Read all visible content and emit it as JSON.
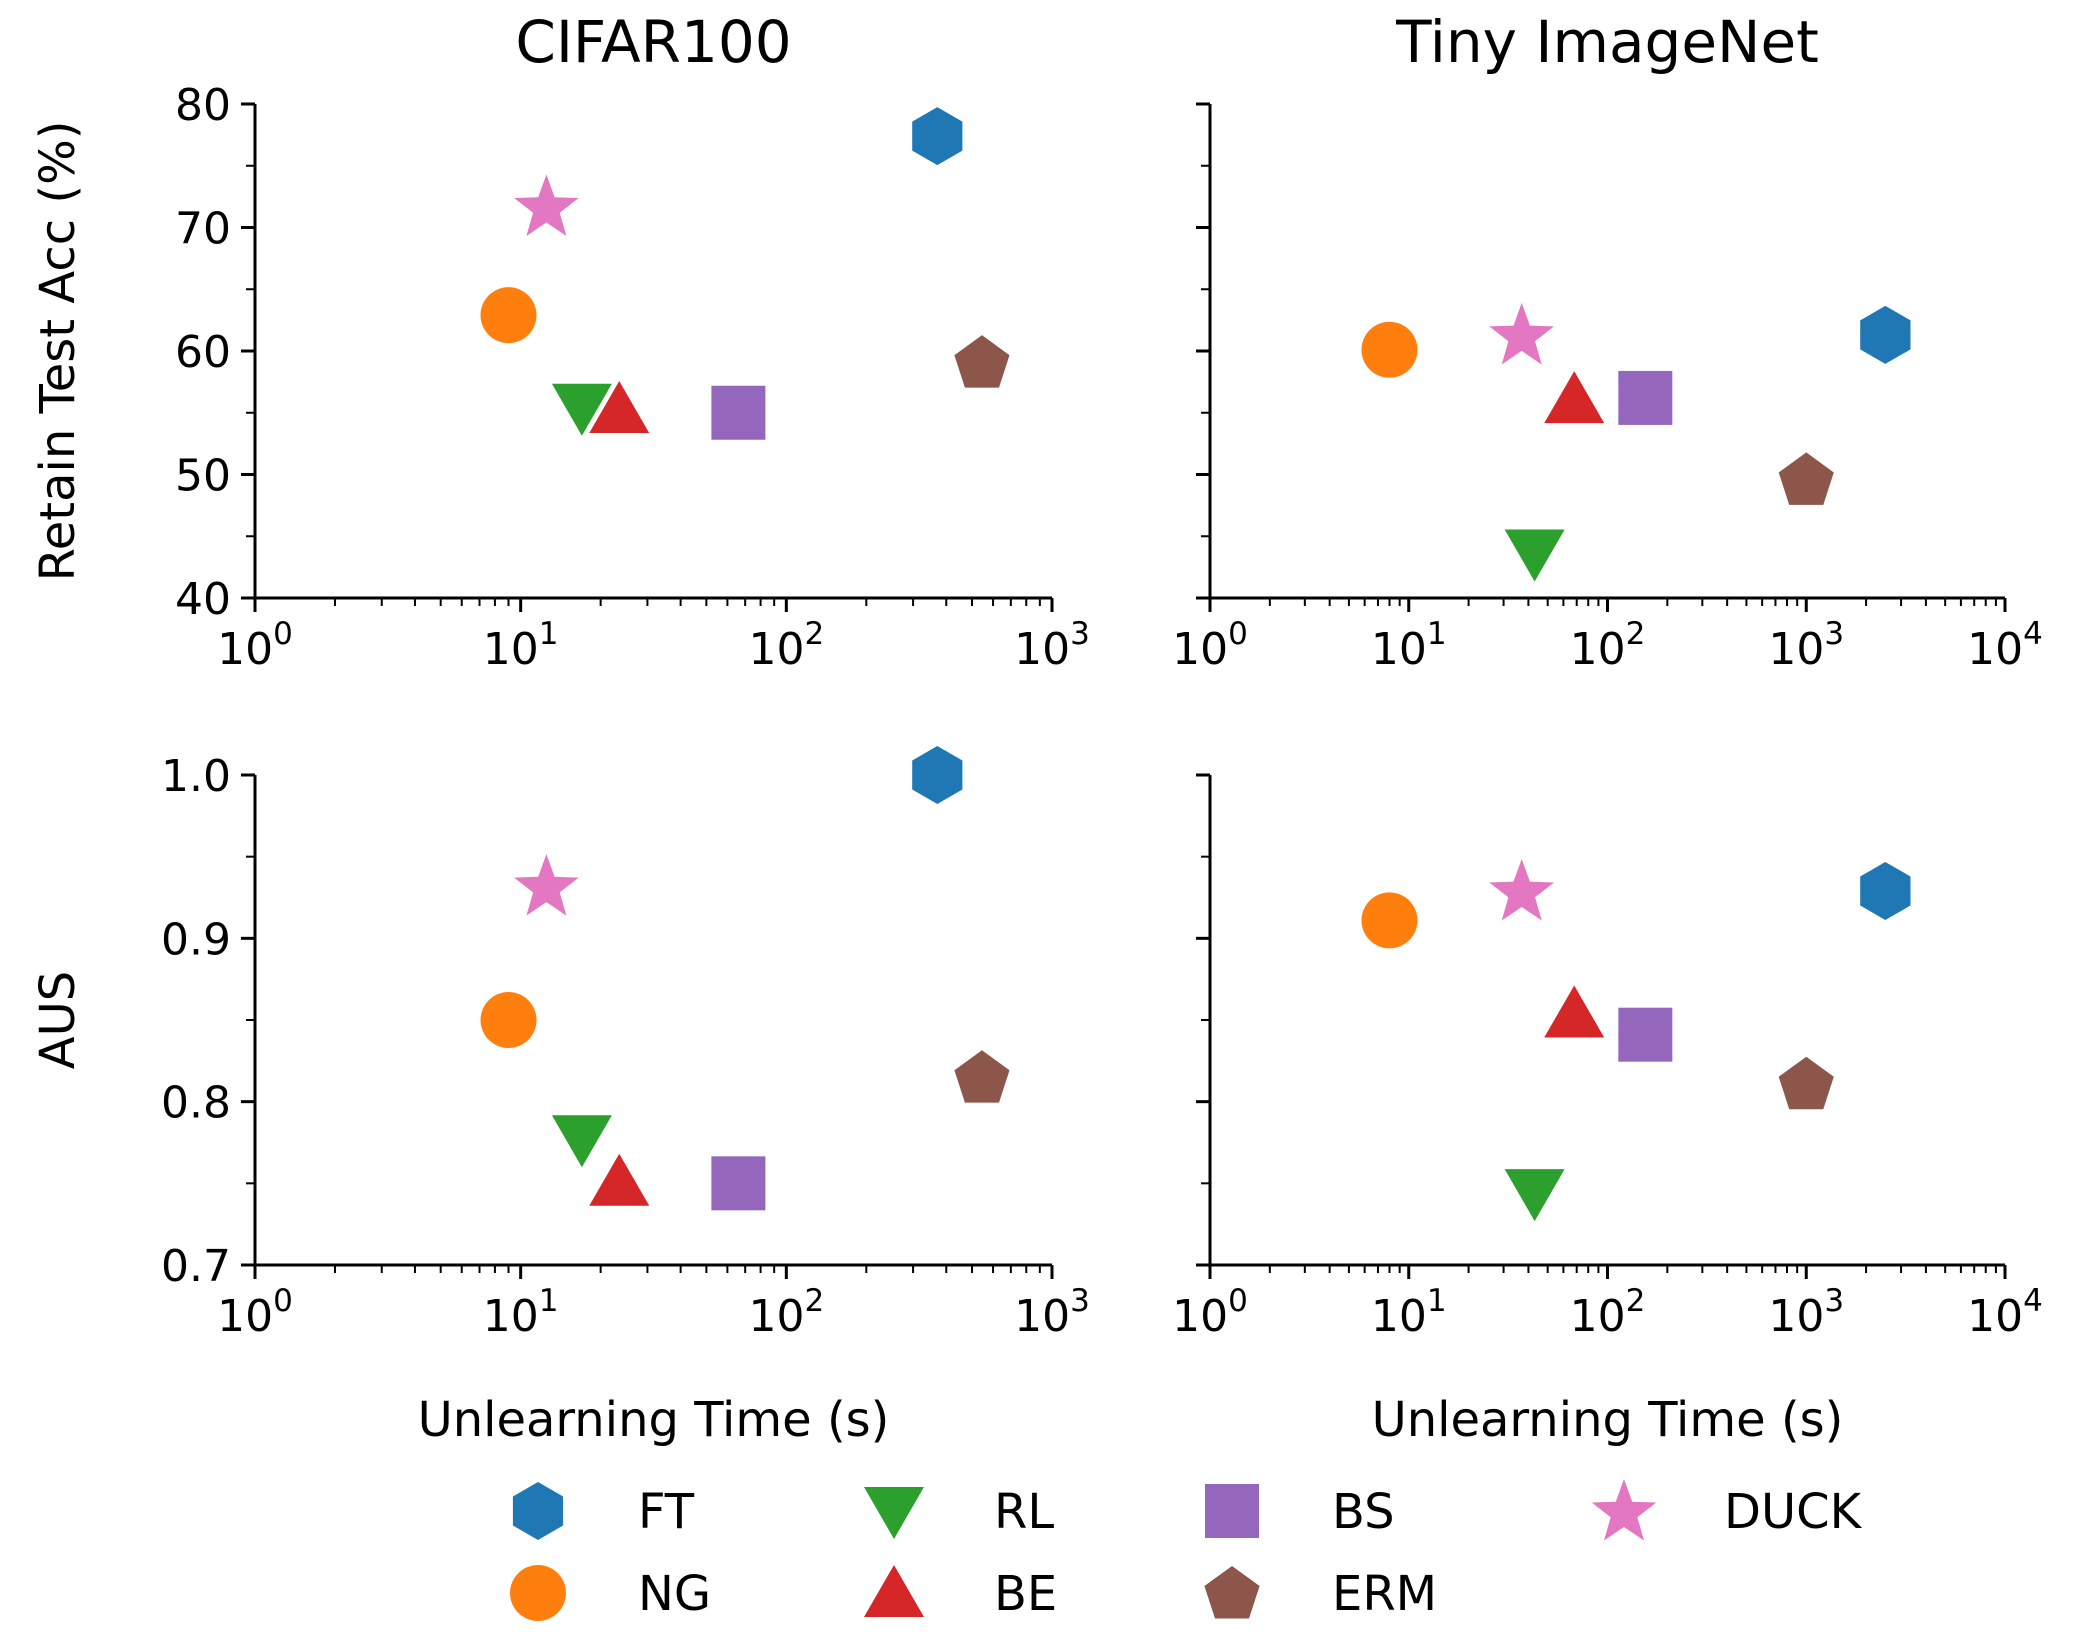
{
  "legend": [
    {
      "method": "FT",
      "color": "#1f77b4",
      "marker": "hexagon"
    },
    {
      "method": "NG",
      "color": "#ff7f0e",
      "marker": "circle"
    },
    {
      "method": "RL",
      "color": "#2ca02c",
      "marker": "triangle-down"
    },
    {
      "method": "BE",
      "color": "#d62728",
      "marker": "triangle-up"
    },
    {
      "method": "BS",
      "color": "#9467bd",
      "marker": "square"
    },
    {
      "method": "ERM",
      "color": "#8c564b",
      "marker": "pentagon"
    },
    {
      "method": "DUCK",
      "color": "#e377c2",
      "marker": "star"
    }
  ],
  "chart_data": [
    {
      "type": "scatter",
      "dataset": "CIFAR100",
      "title": "CIFAR100",
      "ylabel": "Retain Test Acc (%)",
      "xlabel": "",
      "xscale": "log",
      "xlim": [
        1,
        1000
      ],
      "ylim": [
        40,
        80
      ],
      "xticks": [
        1,
        10,
        100,
        1000
      ],
      "xtick_labels": [
        [
          "10",
          "0"
        ],
        [
          "10",
          "1"
        ],
        [
          "10",
          "2"
        ],
        [
          "10",
          "3"
        ]
      ],
      "yticks": [
        40,
        50,
        60,
        70,
        80
      ],
      "ytick_labels": [
        "40",
        "50",
        "60",
        "70",
        "80"
      ],
      "points": [
        {
          "method": "FT",
          "x": 370,
          "y": 77.4
        },
        {
          "method": "NG",
          "x": 9.0,
          "y": 62.9
        },
        {
          "method": "RL",
          "x": 17.0,
          "y": 55.4
        },
        {
          "method": "BE",
          "x": 23.5,
          "y": 55.3
        },
        {
          "method": "BS",
          "x": 66,
          "y": 55.0
        },
        {
          "method": "ERM",
          "x": 545,
          "y": 59.1
        },
        {
          "method": "DUCK",
          "x": 12.5,
          "y": 71.7
        }
      ]
    },
    {
      "type": "scatter",
      "dataset": "Tiny ImageNet",
      "title": "Tiny ImageNet",
      "ylabel": "",
      "xlabel": "",
      "xscale": "log",
      "xlim": [
        1,
        10000
      ],
      "ylim": [
        40,
        80
      ],
      "xticks": [
        1,
        10,
        100,
        1000,
        10000
      ],
      "xtick_labels": [
        [
          "10",
          "0"
        ],
        [
          "10",
          "1"
        ],
        [
          "10",
          "2"
        ],
        [
          "10",
          "3"
        ],
        [
          "10",
          "4"
        ]
      ],
      "yticks": [
        40,
        50,
        60,
        70,
        80
      ],
      "ytick_labels": [],
      "points": [
        {
          "method": "FT",
          "x": 2500,
          "y": 61.3
        },
        {
          "method": "NG",
          "x": 8.0,
          "y": 60.1
        },
        {
          "method": "RL",
          "x": 43,
          "y": 43.6
        },
        {
          "method": "BE",
          "x": 68,
          "y": 56.1
        },
        {
          "method": "BS",
          "x": 155,
          "y": 56.2
        },
        {
          "method": "ERM",
          "x": 1000,
          "y": 49.6
        },
        {
          "method": "DUCK",
          "x": 37,
          "y": 61.3
        }
      ]
    },
    {
      "type": "scatter",
      "dataset": "CIFAR100",
      "title": "",
      "ylabel": "AUS",
      "xlabel": "Unlearning Time (s)",
      "xscale": "log",
      "xlim": [
        1,
        1000
      ],
      "ylim": [
        0.7,
        1.0
      ],
      "xticks": [
        1,
        10,
        100,
        1000
      ],
      "xtick_labels": [
        [
          "10",
          "0"
        ],
        [
          "10",
          "1"
        ],
        [
          "10",
          "2"
        ],
        [
          "10",
          "3"
        ]
      ],
      "yticks": [
        0.7,
        0.8,
        0.9,
        1.0
      ],
      "ytick_labels": [
        "0.7",
        "0.8",
        "0.9",
        "1.0"
      ],
      "points": [
        {
          "method": "FT",
          "x": 370,
          "y": 1.0
        },
        {
          "method": "NG",
          "x": 9.0,
          "y": 0.85
        },
        {
          "method": "RL",
          "x": 17.0,
          "y": 0.777
        },
        {
          "method": "BE",
          "x": 23.5,
          "y": 0.751
        },
        {
          "method": "BS",
          "x": 66,
          "y": 0.75
        },
        {
          "method": "ERM",
          "x": 545,
          "y": 0.815
        },
        {
          "method": "DUCK",
          "x": 12.5,
          "y": 0.932
        }
      ]
    },
    {
      "type": "scatter",
      "dataset": "Tiny ImageNet",
      "title": "",
      "ylabel": "",
      "xlabel": "Unlearning Time (s)",
      "xscale": "log",
      "xlim": [
        1,
        10000
      ],
      "ylim": [
        0.7,
        1.0
      ],
      "xticks": [
        1,
        10,
        100,
        1000,
        10000
      ],
      "xtick_labels": [
        [
          "10",
          "0"
        ],
        [
          "10",
          "1"
        ],
        [
          "10",
          "2"
        ],
        [
          "10",
          "3"
        ],
        [
          "10",
          "4"
        ]
      ],
      "yticks": [
        0.7,
        0.8,
        0.9,
        1.0
      ],
      "ytick_labels": [],
      "points": [
        {
          "method": "FT",
          "x": 2500,
          "y": 0.929
        },
        {
          "method": "NG",
          "x": 8.0,
          "y": 0.911
        },
        {
          "method": "RL",
          "x": 43,
          "y": 0.744
        },
        {
          "method": "BE",
          "x": 68,
          "y": 0.854
        },
        {
          "method": "BS",
          "x": 155,
          "y": 0.841
        },
        {
          "method": "ERM",
          "x": 1000,
          "y": 0.811
        },
        {
          "method": "DUCK",
          "x": 37,
          "y": 0.929
        }
      ]
    }
  ]
}
